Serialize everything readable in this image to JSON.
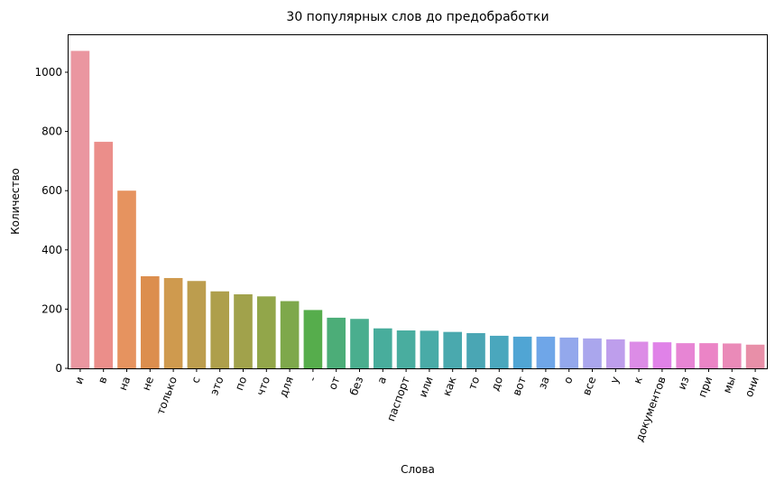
{
  "chart_data": {
    "type": "bar",
    "title": "30 популярных слов до предобработки",
    "xlabel": "Слова",
    "ylabel": "Количество",
    "ylim": [
      0,
      1125
    ],
    "yticks": [
      0,
      200,
      400,
      600,
      800,
      1000
    ],
    "grid": false,
    "legend": "none",
    "categories": [
      "и",
      "в",
      "на",
      "не",
      "только",
      "с",
      "это",
      "по",
      "что",
      "для",
      "-",
      "от",
      "без",
      "а",
      "паспорт",
      "или",
      "как",
      "то",
      "до",
      "вот",
      "за",
      "о",
      "все",
      "у",
      "к",
      "документов",
      "из",
      "при",
      "мы",
      "они"
    ],
    "values": [
      1072,
      765,
      600,
      311,
      305,
      295,
      260,
      250,
      243,
      227,
      197,
      171,
      167,
      135,
      128,
      127,
      123,
      119,
      110,
      107,
      107,
      104,
      101,
      98,
      90,
      88,
      85,
      85,
      84,
      80
    ],
    "colors": [
      "#ea96a0",
      "#eb8e8a",
      "#e6935f",
      "#dc8e4e",
      "#cf9a4e",
      "#bc9d4e",
      "#ae9f4b",
      "#a1a24b",
      "#92a64a",
      "#7ea84b",
      "#56ad4c",
      "#4cad78",
      "#4aae8e",
      "#48ad9c",
      "#49ad9f",
      "#49aba7",
      "#4aa9ae",
      "#4aa6b4",
      "#4aa7bd",
      "#50a5d4",
      "#6fa6e8",
      "#93a8ec",
      "#aaa6ed",
      "#be9eec",
      "#dc8ce6",
      "#e082e8",
      "#e785d4",
      "#eb84c6",
      "#ea8ab8",
      "#e88fa8"
    ]
  }
}
